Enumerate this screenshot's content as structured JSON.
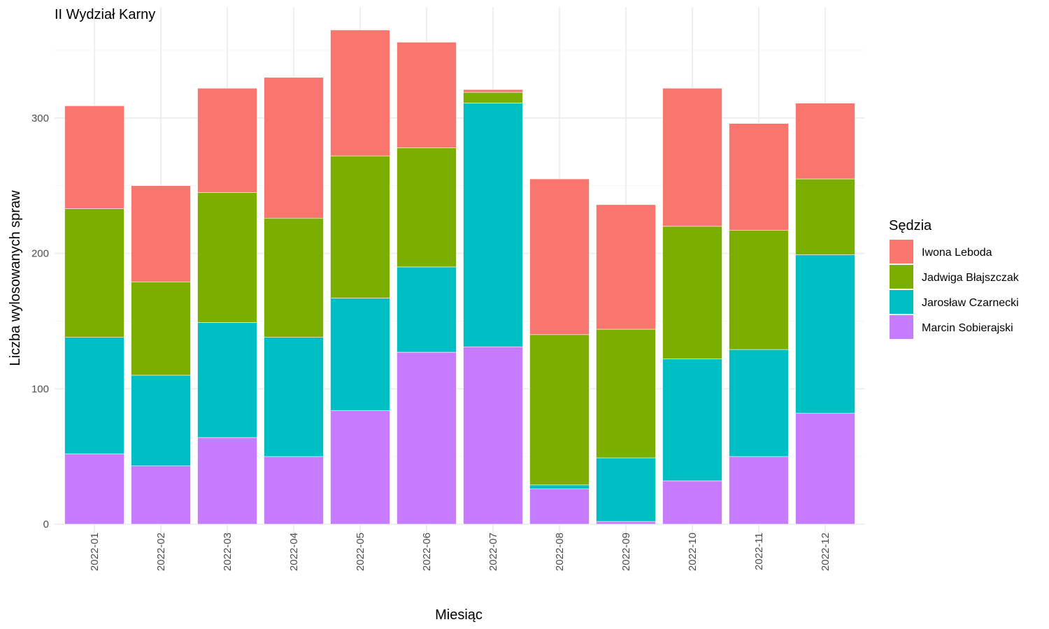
{
  "chart_data": {
    "type": "bar",
    "stacked": true,
    "title": "II Wydział Karny",
    "xlabel": "Miesiąc",
    "ylabel": "Liczba wylosowanych spraw",
    "ylim": [
      0,
      382
    ],
    "yticks": [
      0,
      100,
      200,
      300
    ],
    "grid": true,
    "legend_position": "right",
    "legend_title": "Sędzia",
    "categories": [
      "2022-01",
      "2022-02",
      "2022-03",
      "2022-04",
      "2022-05",
      "2022-06",
      "2022-07",
      "2022-08",
      "2022-09",
      "2022-10",
      "2022-11",
      "2022-12"
    ],
    "series": [
      {
        "name": "Marcin Sobierajski",
        "color": "#C77CFF",
        "values": [
          52,
          43,
          64,
          50,
          84,
          127,
          131,
          26,
          2,
          32,
          50,
          82
        ]
      },
      {
        "name": "Jarosław Czarnecki",
        "color": "#00BFC4",
        "values": [
          86,
          67,
          85,
          88,
          83,
          63,
          180,
          3,
          47,
          90,
          79,
          117
        ]
      },
      {
        "name": "Jadwiga Błajszczak",
        "color": "#7CAE00",
        "values": [
          95,
          69,
          96,
          88,
          105,
          88,
          8,
          111,
          95,
          98,
          88,
          56
        ]
      },
      {
        "name": "Iwona Leboda",
        "color": "#F8766D",
        "values": [
          76,
          71,
          77,
          104,
          93,
          78,
          2,
          115,
          92,
          102,
          79,
          56
        ]
      }
    ],
    "legend_order": [
      "Iwona Leboda",
      "Jadwiga Błajszczak",
      "Jarosław Czarnecki",
      "Marcin Sobierajski"
    ]
  }
}
